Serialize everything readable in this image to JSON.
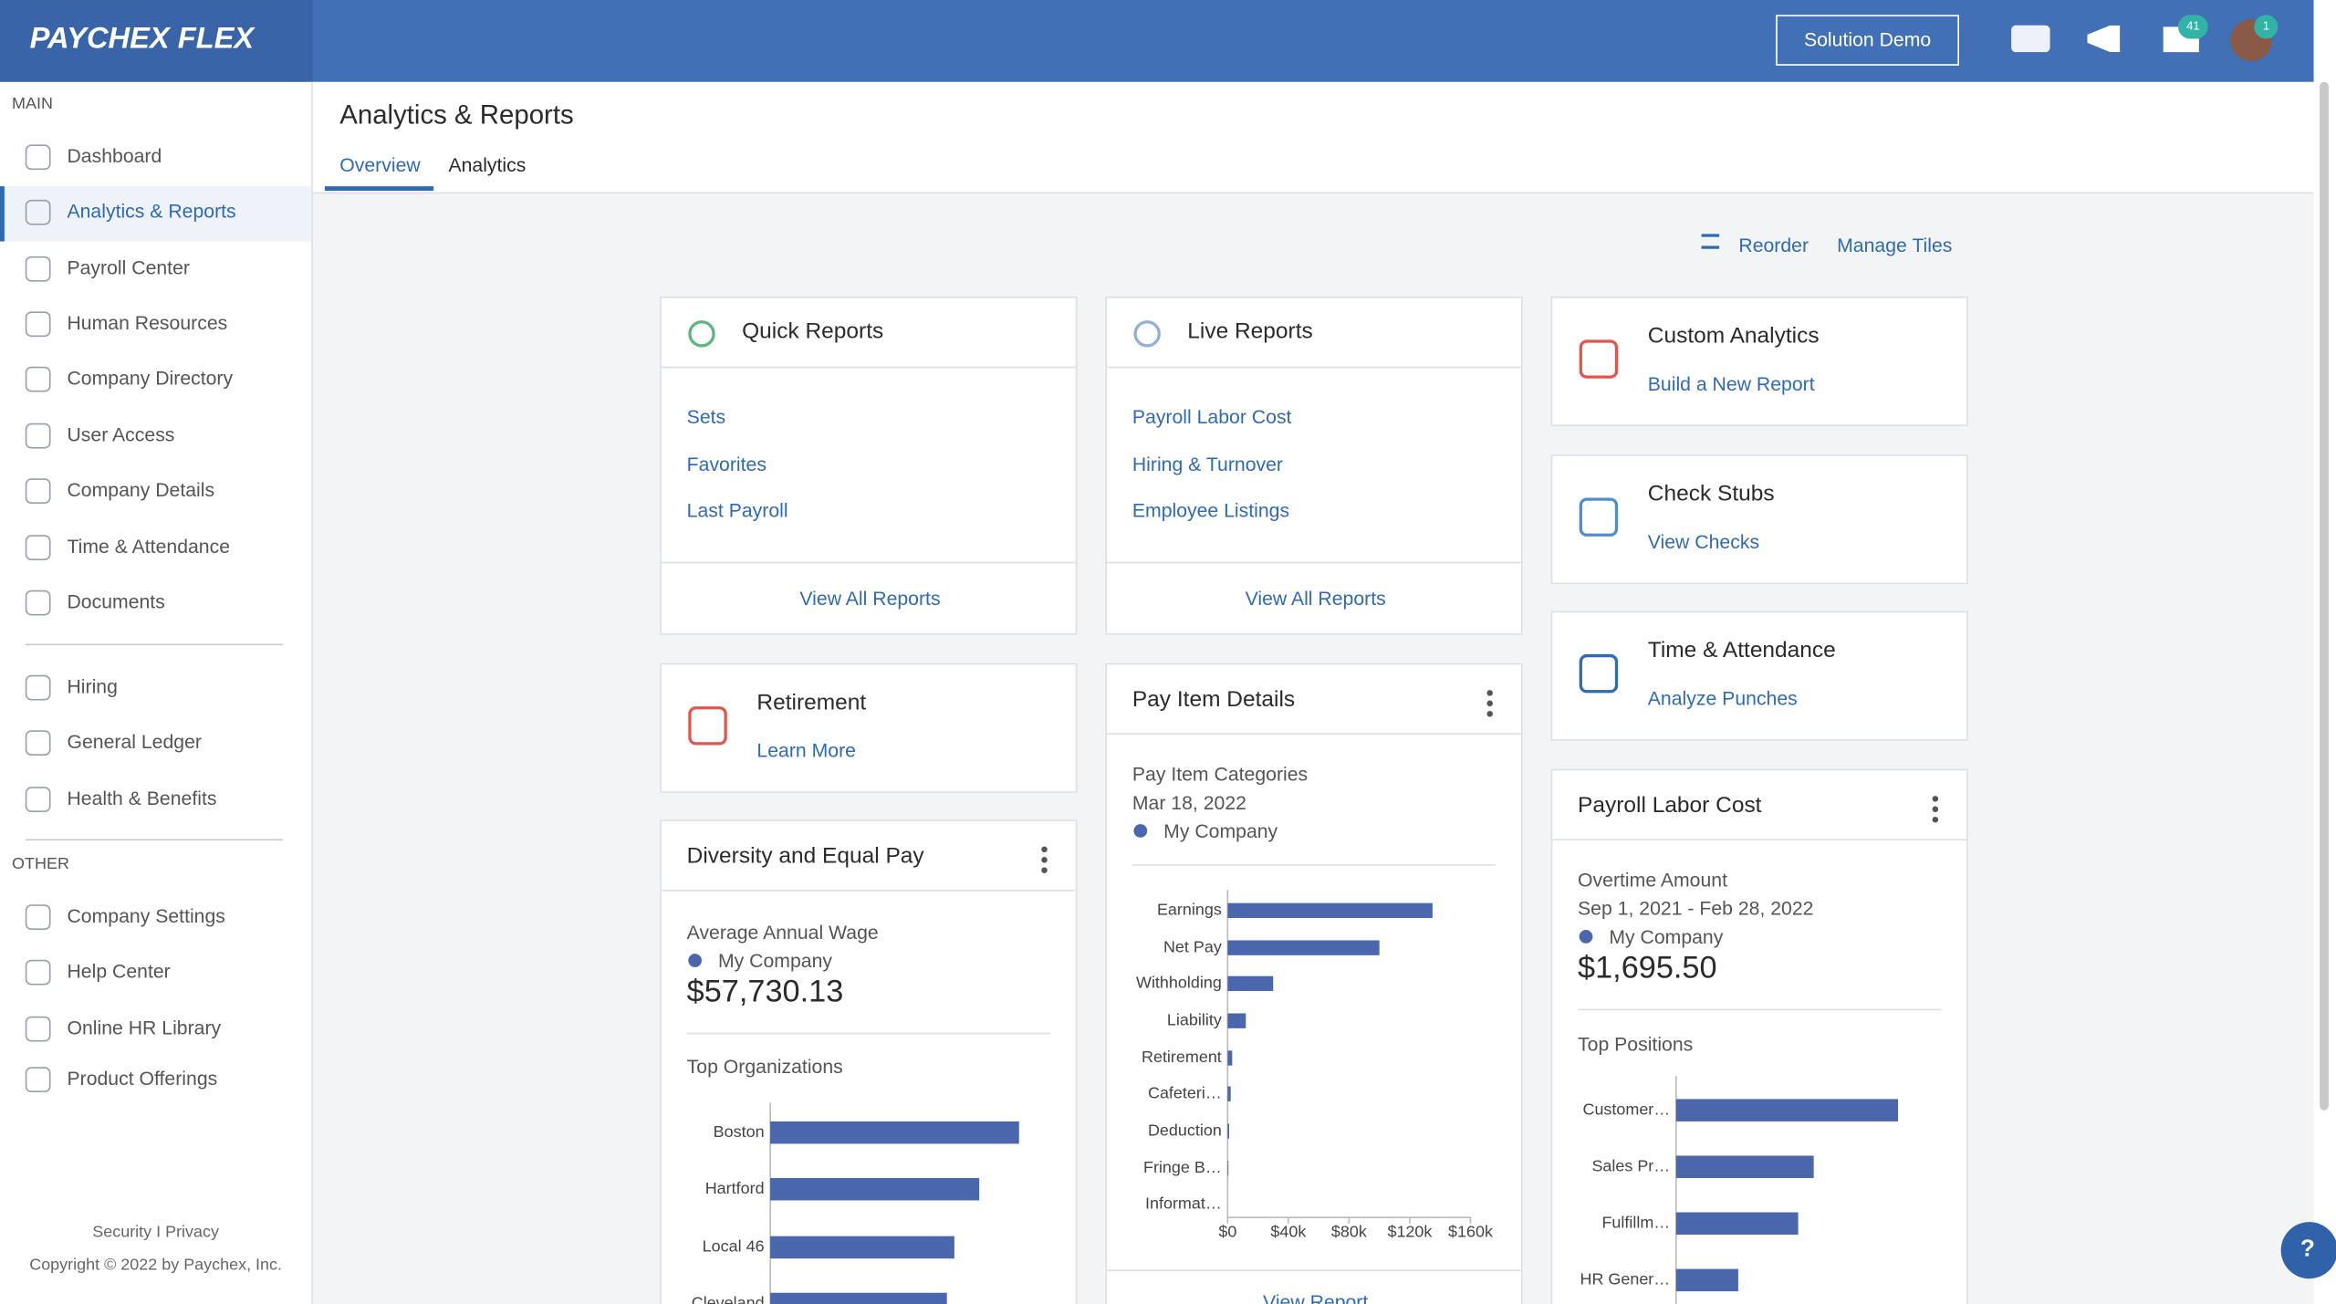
{
  "header": {
    "logo": "PAYCHEX FLEX",
    "demo_button": "Solution Demo",
    "messages_badge": "41",
    "profile_badge": "1"
  },
  "sidebar": {
    "main_label": "MAIN",
    "main_items": [
      "Dashboard",
      "Analytics & Reports",
      "Payroll Center",
      "Human Resources",
      "Company Directory",
      "User Access",
      "Company Details",
      "Time & Attendance",
      "Documents"
    ],
    "extra_items": [
      "Hiring",
      "General Ledger",
      "Health & Benefits"
    ],
    "other_label": "OTHER",
    "other_items": [
      "Company Settings",
      "Help Center",
      "Online HR Library",
      "Product Offerings"
    ],
    "footer_links": "Security I Privacy",
    "copyright": "Copyright © 2022 by Paychex, Inc."
  },
  "page": {
    "title": "Analytics & Reports",
    "tabs": [
      "Overview",
      "Analytics"
    ],
    "actions": [
      "Reorder",
      "Manage Tiles"
    ]
  },
  "tiles": {
    "quick_reports": {
      "title": "Quick Reports",
      "links": [
        "Sets",
        "Favorites",
        "Last Payroll"
      ],
      "footer": "View All Reports"
    },
    "live_reports": {
      "title": "Live Reports",
      "links": [
        "Payroll Labor Cost",
        "Hiring & Turnover",
        "Employee Listings"
      ],
      "footer": "View All Reports"
    },
    "custom_analytics": {
      "title": "Custom Analytics",
      "link": "Build a New Report"
    },
    "check_stubs": {
      "title": "Check Stubs",
      "link": "View Checks"
    },
    "time_attendance": {
      "title": "Time & Attendance",
      "link": "Analyze Punches"
    },
    "retirement": {
      "title": "Retirement",
      "link": "Learn More"
    },
    "diversity": {
      "title": "Diversity and Equal Pay",
      "metric_label": "Average Annual Wage",
      "series_name": "My Company",
      "metric_value": "$57,730.13",
      "chart_title": "Top Organizations",
      "chart": {
        "type": "bar",
        "categories": [
          "Boston",
          "Hartford",
          "Local 46",
          "Cleveland"
        ],
        "values": [
          100,
          84,
          74,
          71
        ],
        "xlim": [
          0,
          100
        ],
        "color": "#4a66ad"
      }
    },
    "pay_item": {
      "title": "Pay Item Details",
      "chart_title": "Pay Item Categories",
      "date": "Mar 18, 2022",
      "series_name": "My Company",
      "footer": "View Report",
      "chart": {
        "type": "bar",
        "categories": [
          "Earnings",
          "Net Pay",
          "Withholding",
          "Liability",
          "Retirement",
          "Cafeteri…",
          "Deduction",
          "Fringe B…",
          "Informat…"
        ],
        "values": [
          135000,
          100000,
          30000,
          12000,
          3000,
          2000,
          1000,
          500,
          0
        ],
        "xlim": [
          0,
          160000
        ],
        "xticks": [
          {
            "value": 0,
            "label": "$0"
          },
          {
            "value": 40000,
            "label": "$40k"
          },
          {
            "value": 80000,
            "label": "$80k"
          },
          {
            "value": 120000,
            "label": "$120k"
          },
          {
            "value": 160000,
            "label": "$160k"
          }
        ],
        "color": "#4a66ad"
      }
    },
    "payroll_labor": {
      "title": "Payroll Labor Cost",
      "metric_label": "Overtime Amount",
      "date_range": "Sep 1, 2021 - Feb 28, 2022",
      "series_name": "My Company",
      "metric_value": "$1,695.50",
      "chart_title": "Top Positions",
      "chart": {
        "type": "bar",
        "categories": [
          "Customer…",
          "Sales Pr…",
          "Fulfillm…",
          "HR Gener…"
        ],
        "values": [
          100,
          62,
          55,
          28
        ],
        "xlim": [
          0,
          100
        ],
        "color": "#4a66ad"
      }
    }
  }
}
